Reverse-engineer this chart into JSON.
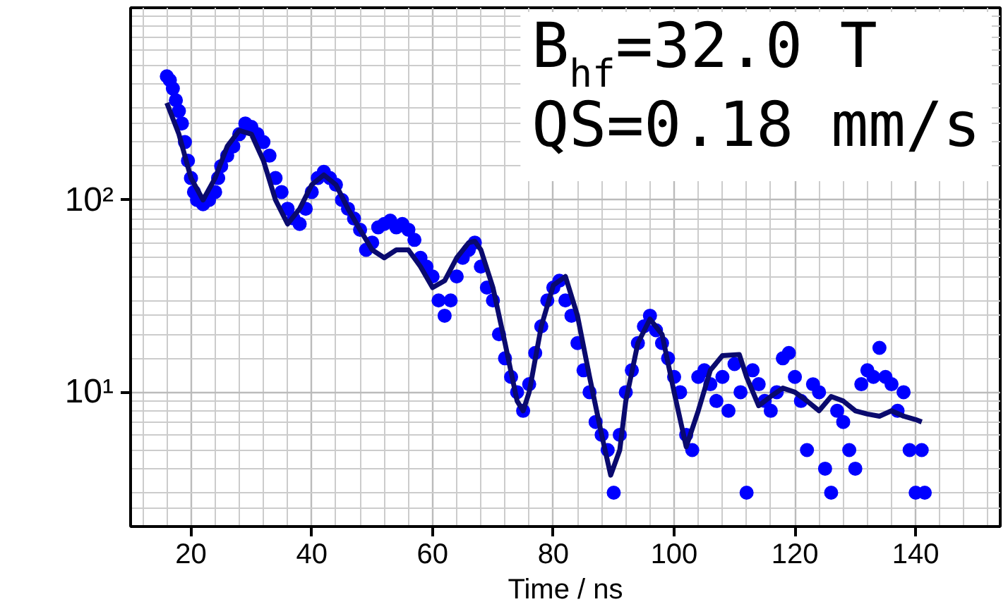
{
  "chart_data": {
    "type": "scatter",
    "xlabel": "Time / ns",
    "log": "y",
    "grid": true,
    "marker": "circle",
    "xlim": [
      10,
      154
    ],
    "ylim": [
      2,
      1000
    ],
    "xticks": [
      20,
      40,
      60,
      80,
      100,
      120,
      140
    ],
    "yticks": [
      {
        "value": 10,
        "label": "10¹"
      },
      {
        "value": 100,
        "label": "10²"
      }
    ],
    "annotations": [
      "B$_{hf}$=32.0 T",
      "QS=0.18 mm/s"
    ],
    "series": [
      {
        "color": "#0000ff",
        "x": [
          16,
          16.5,
          17,
          17.5,
          18,
          18.5,
          19,
          19.5,
          20,
          20.5,
          21,
          22,
          23,
          24,
          24.5,
          25,
          26,
          27,
          28,
          29,
          30,
          31,
          32,
          33,
          34,
          35,
          36,
          37,
          38,
          39,
          40,
          41,
          42,
          43,
          44,
          45,
          46,
          47,
          48,
          49,
          50,
          51,
          52,
          53,
          54,
          55,
          56,
          57,
          58,
          59,
          60,
          61,
          62,
          63,
          64,
          65,
          66,
          67,
          68,
          69,
          70,
          71,
          72,
          73,
          74,
          75,
          76,
          77,
          78,
          79,
          80,
          81,
          82,
          83,
          84,
          85,
          86,
          87,
          88,
          89,
          90,
          91,
          92,
          93,
          94,
          95,
          96,
          97,
          98,
          99,
          100,
          101,
          102,
          103,
          104,
          105,
          106,
          107,
          108,
          109,
          110,
          111,
          112,
          113,
          114,
          115,
          116,
          117,
          118,
          119,
          120,
          121,
          122,
          123,
          124,
          125,
          126,
          127,
          128,
          129,
          130,
          131,
          132,
          133,
          134,
          135,
          136,
          137,
          138,
          139,
          140,
          141,
          141.5
        ],
        "values": [
          440,
          420,
          380,
          330,
          290,
          250,
          200,
          160,
          130,
          110,
          100,
          95,
          100,
          110,
          130,
          150,
          170,
          190,
          220,
          250,
          240,
          220,
          200,
          170,
          130,
          110,
          90,
          80,
          75,
          90,
          110,
          130,
          140,
          130,
          120,
          100,
          90,
          80,
          70,
          55,
          60,
          72,
          75,
          78,
          72,
          75,
          70,
          62,
          50,
          45,
          40,
          30,
          25,
          30,
          40,
          50,
          55,
          60,
          45,
          35,
          30,
          20,
          15,
          12,
          10,
          8,
          11,
          16,
          22,
          30,
          35,
          38,
          30,
          25,
          18,
          13,
          10,
          7,
          6,
          5,
          3,
          6,
          10,
          13,
          18,
          22,
          25,
          21,
          18,
          15,
          12,
          10,
          6,
          5,
          12,
          13,
          11,
          9,
          12,
          8,
          14,
          10,
          3,
          13,
          11,
          9,
          8,
          10,
          15,
          16,
          12,
          9,
          5,
          11,
          10,
          4,
          3,
          8,
          7,
          5,
          4,
          11,
          13,
          12,
          17,
          12,
          11,
          8,
          10,
          5,
          3,
          5,
          3
        ]
      },
      {
        "type": "line",
        "color": "#0a0a6e",
        "marker": "none",
        "x": [
          16,
          18,
          20,
          22,
          24,
          26,
          28,
          30,
          32,
          34,
          36,
          38,
          40,
          42,
          44,
          46,
          48,
          50,
          52,
          54,
          56,
          58,
          60,
          62,
          64,
          66,
          67,
          68,
          70,
          72,
          74,
          75,
          76,
          78,
          80,
          82,
          84,
          86,
          88,
          89.5,
          91,
          92,
          94,
          96,
          98,
          100,
          102,
          104,
          106,
          108,
          110.8,
          112,
          114,
          116,
          118,
          120,
          122,
          124,
          126,
          128,
          130,
          132,
          134,
          136,
          138,
          140,
          141
        ],
        "values": [
          320,
          220,
          130,
          100,
          130,
          190,
          230,
          220,
          160,
          100,
          75,
          90,
          120,
          135,
          120,
          90,
          70,
          55,
          50,
          55,
          55,
          45,
          35,
          38,
          50,
          60,
          61,
          55,
          35,
          18,
          9,
          8,
          10,
          22,
          36,
          40,
          25,
          12,
          6,
          3.7,
          5,
          9,
          18,
          24,
          20,
          10,
          5.2,
          8,
          13,
          15.5,
          15.7,
          12,
          8.5,
          9.5,
          10.5,
          10,
          9,
          8,
          9.5,
          9,
          8,
          7.7,
          7.5,
          8,
          7.5,
          7.2,
          7
        ]
      }
    ]
  }
}
